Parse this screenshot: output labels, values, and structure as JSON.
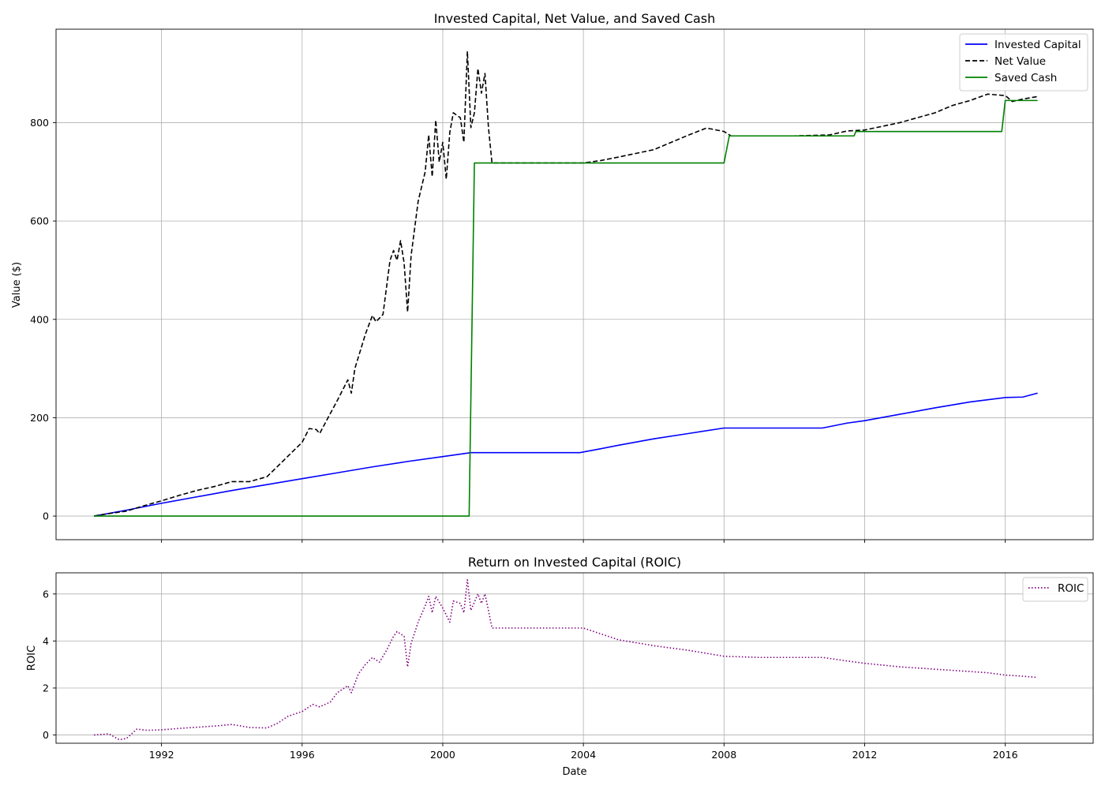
{
  "chart_data": [
    {
      "type": "line",
      "title": "Invested Capital, Net Value, and Saved Cash",
      "xlabel": "",
      "ylabel": "Value ($)",
      "xlim": [
        1989.0,
        2018.5
      ],
      "ylim": [
        -48,
        990
      ],
      "x_ticks": [
        1992,
        1996,
        2000,
        2004,
        2008,
        2012,
        2016
      ],
      "y_ticks": [
        0,
        200,
        400,
        600,
        800
      ],
      "grid": true,
      "legend": "top-right",
      "series": [
        {
          "name": "Invested Capital",
          "color": "#0000ff",
          "style": "solid",
          "points": [
            [
              1990.08,
              0
            ],
            [
              1991,
              12
            ],
            [
              1992,
              26
            ],
            [
              1993,
              39
            ],
            [
              1994,
              52
            ],
            [
              1995,
              64
            ],
            [
              1996,
              76
            ],
            [
              1997,
              88
            ],
            [
              1998,
              100
            ],
            [
              1999,
              111
            ],
            [
              2000,
              121
            ],
            [
              2000.8,
              129
            ],
            [
              2001,
              129
            ],
            [
              2002,
              129
            ],
            [
              2003,
              129
            ],
            [
              2003.9,
              129
            ],
            [
              2004.5,
              137
            ],
            [
              2005,
              144
            ],
            [
              2006,
              157
            ],
            [
              2007,
              168
            ],
            [
              2008,
              179
            ],
            [
              2009,
              179
            ],
            [
              2010,
              179
            ],
            [
              2010.8,
              179
            ],
            [
              2011.5,
              189
            ],
            [
              2012,
              194
            ],
            [
              2013,
              207
            ],
            [
              2014,
              220
            ],
            [
              2015,
              232
            ],
            [
              2016,
              241
            ],
            [
              2016.5,
              242
            ],
            [
              2016.92,
              250
            ]
          ]
        },
        {
          "name": "Net Value",
          "color": "#000000",
          "style": "dashed",
          "points": [
            [
              1990.08,
              0
            ],
            [
              1990.5,
              5
            ],
            [
              1991,
              10
            ],
            [
              1991.5,
              21
            ],
            [
              1992,
              31
            ],
            [
              1992.5,
              42
            ],
            [
              1993,
              52
            ],
            [
              1993.5,
              60
            ],
            [
              1994,
              70
            ],
            [
              1994.5,
              70
            ],
            [
              1995,
              80
            ],
            [
              1995.5,
              115
            ],
            [
              1996,
              150
            ],
            [
              1996.2,
              178
            ],
            [
              1996.4,
              176
            ],
            [
              1996.5,
              168
            ],
            [
              1996.7,
              195
            ],
            [
              1997,
              235
            ],
            [
              1997.3,
              277
            ],
            [
              1997.4,
              250
            ],
            [
              1997.5,
              300
            ],
            [
              1997.8,
              370
            ],
            [
              1998,
              408
            ],
            [
              1998.1,
              395
            ],
            [
              1998.3,
              410
            ],
            [
              1998.5,
              520
            ],
            [
              1998.6,
              540
            ],
            [
              1998.7,
              520
            ],
            [
              1998.8,
              560
            ],
            [
              1998.9,
              515
            ],
            [
              1999,
              415
            ],
            [
              1999.1,
              530
            ],
            [
              1999.3,
              640
            ],
            [
              1999.5,
              700
            ],
            [
              1999.6,
              775
            ],
            [
              1999.7,
              690
            ],
            [
              1999.8,
              805
            ],
            [
              1999.9,
              720
            ],
            [
              2000,
              760
            ],
            [
              2000.1,
              685
            ],
            [
              2000.2,
              780
            ],
            [
              2000.3,
              820
            ],
            [
              2000.5,
              810
            ],
            [
              2000.6,
              760
            ],
            [
              2000.7,
              945
            ],
            [
              2000.8,
              790
            ],
            [
              2000.9,
              820
            ],
            [
              2001,
              910
            ],
            [
              2001.1,
              860
            ],
            [
              2001.2,
              900
            ],
            [
              2001.3,
              790
            ],
            [
              2001.4,
              718
            ],
            [
              2002,
              718
            ],
            [
              2003,
              718
            ],
            [
              2004,
              718
            ],
            [
              2004.5,
              723
            ],
            [
              2005,
              730
            ],
            [
              2006,
              745
            ],
            [
              2006.5,
              760
            ],
            [
              2007,
              775
            ],
            [
              2007.5,
              789
            ],
            [
              2008,
              782
            ],
            [
              2008.2,
              773
            ],
            [
              2009,
              773
            ],
            [
              2010,
              773
            ],
            [
              2011,
              775
            ],
            [
              2011.5,
              783
            ],
            [
              2012,
              785
            ],
            [
              2013,
              800
            ],
            [
              2014,
              820
            ],
            [
              2014.5,
              835
            ],
            [
              2015,
              845
            ],
            [
              2015.5,
              858
            ],
            [
              2016,
              855
            ],
            [
              2016.2,
              843
            ],
            [
              2016.5,
              848
            ],
            [
              2016.92,
              853
            ]
          ]
        },
        {
          "name": "Saved Cash",
          "color": "#008000",
          "style": "solid",
          "points": [
            [
              1990.08,
              0
            ],
            [
              2000.75,
              0
            ],
            [
              2000.9,
              718
            ],
            [
              2008,
              718
            ],
            [
              2008.15,
              773
            ],
            [
              2011.7,
              773
            ],
            [
              2011.75,
              782
            ],
            [
              2015.9,
              782
            ],
            [
              2016.0,
              845
            ],
            [
              2016.92,
              845
            ]
          ]
        }
      ]
    },
    {
      "type": "line",
      "title": "Return on Invested Capital (ROIC)",
      "xlabel": "Date",
      "ylabel": "ROIC",
      "xlim": [
        1989.0,
        2018.5
      ],
      "ylim": [
        -0.35,
        6.9
      ],
      "x_ticks": [
        1992,
        1996,
        2000,
        2004,
        2008,
        2012,
        2016
      ],
      "y_ticks": [
        0,
        2,
        4,
        6
      ],
      "grid": true,
      "legend": "top-right",
      "series": [
        {
          "name": "ROIC",
          "color": "#800080",
          "style": "dotted",
          "points": [
            [
              1990.08,
              0
            ],
            [
              1990.5,
              0.05
            ],
            [
              1990.8,
              -0.2
            ],
            [
              1991,
              -0.15
            ],
            [
              1991.3,
              0.25
            ],
            [
              1991.6,
              0.2
            ],
            [
              1992,
              0.22
            ],
            [
              1992.5,
              0.28
            ],
            [
              1993,
              0.33
            ],
            [
              1993.5,
              0.38
            ],
            [
              1994,
              0.45
            ],
            [
              1994.5,
              0.32
            ],
            [
              1995,
              0.3
            ],
            [
              1995.3,
              0.5
            ],
            [
              1995.6,
              0.8
            ],
            [
              1996,
              1.0
            ],
            [
              1996.3,
              1.3
            ],
            [
              1996.5,
              1.2
            ],
            [
              1996.8,
              1.4
            ],
            [
              1997,
              1.8
            ],
            [
              1997.3,
              2.1
            ],
            [
              1997.4,
              1.8
            ],
            [
              1997.6,
              2.6
            ],
            [
              1997.8,
              3.0
            ],
            [
              1998,
              3.3
            ],
            [
              1998.2,
              3.1
            ],
            [
              1998.4,
              3.6
            ],
            [
              1998.6,
              4.2
            ],
            [
              1998.7,
              4.4
            ],
            [
              1998.9,
              4.2
            ],
            [
              1999,
              2.9
            ],
            [
              1999.1,
              3.9
            ],
            [
              1999.3,
              4.8
            ],
            [
              1999.5,
              5.5
            ],
            [
              1999.6,
              5.9
            ],
            [
              1999.7,
              5.2
            ],
            [
              1999.8,
              5.9
            ],
            [
              2000,
              5.4
            ],
            [
              2000.2,
              4.8
            ],
            [
              2000.3,
              5.7
            ],
            [
              2000.5,
              5.6
            ],
            [
              2000.6,
              5.2
            ],
            [
              2000.7,
              6.6
            ],
            [
              2000.8,
              5.3
            ],
            [
              2001,
              6.0
            ],
            [
              2001.1,
              5.6
            ],
            [
              2001.2,
              6.0
            ],
            [
              2001.3,
              5.3
            ],
            [
              2001.4,
              4.55
            ],
            [
              2002,
              4.55
            ],
            [
              2003,
              4.55
            ],
            [
              2004,
              4.55
            ],
            [
              2005,
              4.05
            ],
            [
              2006,
              3.8
            ],
            [
              2007,
              3.6
            ],
            [
              2008,
              3.35
            ],
            [
              2009,
              3.3
            ],
            [
              2010,
              3.3
            ],
            [
              2010.8,
              3.3
            ],
            [
              2011.5,
              3.15
            ],
            [
              2012,
              3.05
            ],
            [
              2013,
              2.9
            ],
            [
              2014,
              2.8
            ],
            [
              2015,
              2.7
            ],
            [
              2015.5,
              2.65
            ],
            [
              2016,
              2.55
            ],
            [
              2016.5,
              2.5
            ],
            [
              2016.92,
              2.45
            ]
          ]
        }
      ]
    }
  ]
}
